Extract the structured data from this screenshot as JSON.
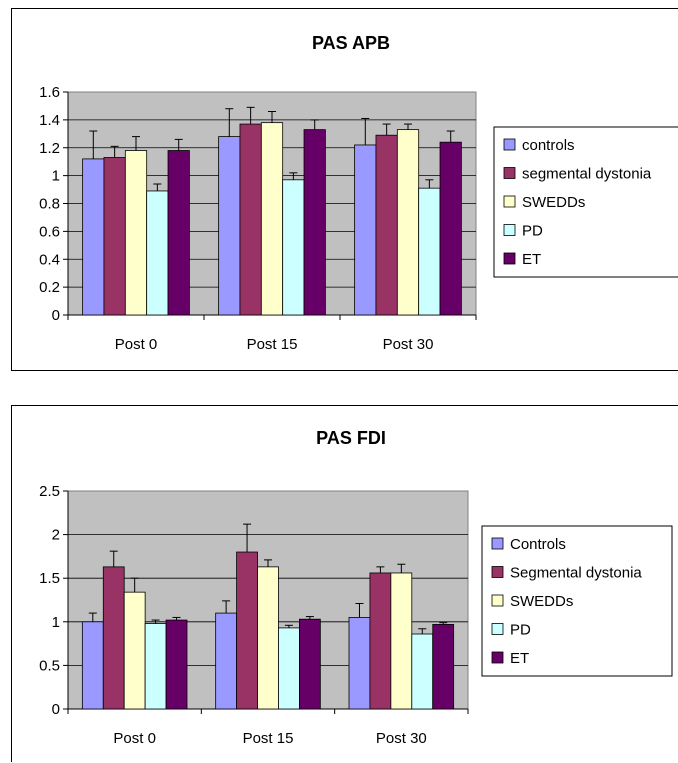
{
  "chart_data": [
    {
      "type": "bar",
      "title": "PAS APB",
      "categories": [
        "Post 0",
        "Post 15",
        "Post 30"
      ],
      "ylim": [
        0,
        1.6
      ],
      "yticks": [
        "0",
        "0.2",
        "0.4",
        "0.6",
        "0.8",
        "1",
        "1.2",
        "1.4",
        "1.6"
      ],
      "grid": true,
      "legend_position": "right",
      "series": [
        {
          "name": "controls",
          "color": "#9999ff",
          "values": [
            1.12,
            1.28,
            1.22
          ],
          "errors": [
            0.2,
            0.2,
            0.19
          ]
        },
        {
          "name": "segmental dystonia",
          "color": "#993366",
          "values": [
            1.13,
            1.37,
            1.29
          ],
          "errors": [
            0.08,
            0.12,
            0.08
          ]
        },
        {
          "name": "SWEDDs",
          "color": "#ffffcc",
          "values": [
            1.18,
            1.38,
            1.33
          ],
          "errors": [
            0.1,
            0.08,
            0.04
          ]
        },
        {
          "name": "PD",
          "color": "#ccffff",
          "values": [
            0.89,
            0.97,
            0.91
          ],
          "errors": [
            0.05,
            0.05,
            0.06
          ]
        },
        {
          "name": "ET",
          "color": "#660066",
          "values": [
            1.18,
            1.33,
            1.24
          ],
          "errors": [
            0.08,
            0.07,
            0.08
          ]
        }
      ]
    },
    {
      "type": "bar",
      "title": "PAS FDI",
      "categories": [
        "Post 0",
        "Post 15",
        "Post 30"
      ],
      "ylim": [
        0,
        2.5
      ],
      "yticks": [
        "0",
        "0.5",
        "1",
        "1.5",
        "2",
        "2.5"
      ],
      "grid": true,
      "legend_position": "right",
      "series": [
        {
          "name": "Controls",
          "color": "#9999ff",
          "values": [
            1.0,
            1.1,
            1.05
          ],
          "errors": [
            0.1,
            0.14,
            0.16
          ]
        },
        {
          "name": "Segmental dystonia",
          "color": "#993366",
          "values": [
            1.63,
            1.8,
            1.56
          ],
          "errors": [
            0.18,
            0.32,
            0.07
          ]
        },
        {
          "name": "SWEDDs",
          "color": "#ffffcc",
          "values": [
            1.34,
            1.63,
            1.56
          ],
          "errors": [
            0.16,
            0.08,
            0.1
          ]
        },
        {
          "name": "PD",
          "color": "#ccffff",
          "values": [
            0.98,
            0.93,
            0.86
          ],
          "errors": [
            0.04,
            0.03,
            0.06
          ]
        },
        {
          "name": "ET",
          "color": "#660066",
          "values": [
            1.02,
            1.03,
            0.97
          ],
          "errors": [
            0.03,
            0.03,
            0.02
          ]
        }
      ]
    }
  ]
}
